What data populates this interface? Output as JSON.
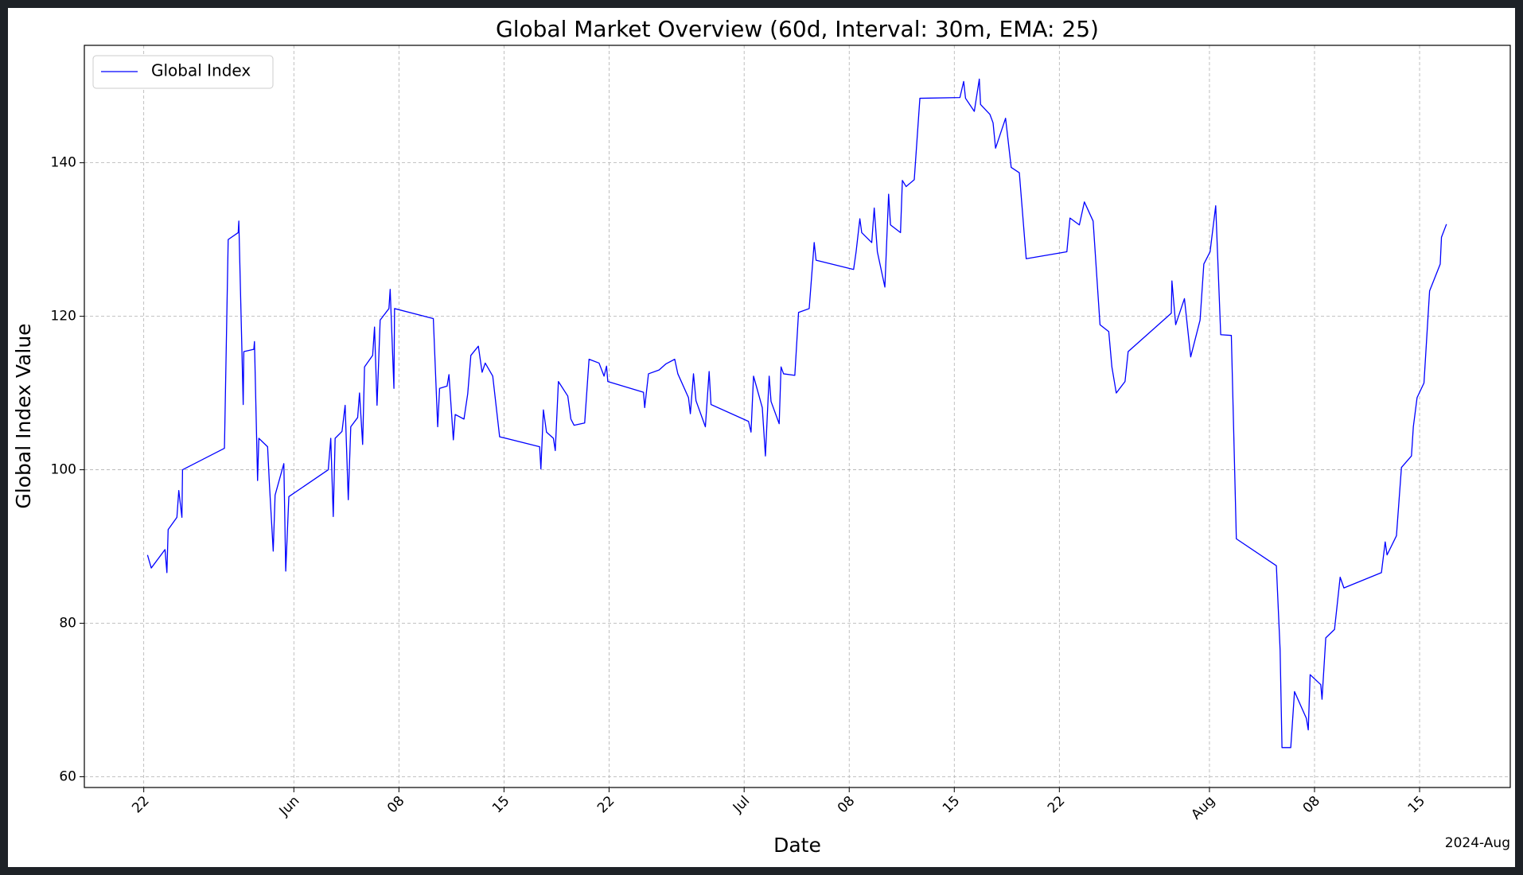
{
  "chart_data": {
    "type": "line",
    "title": "Global Market Overview (60d, Interval: 30m, EMA: 25)",
    "x_label": "Date",
    "y_label": "Global Index Value",
    "x_offset_label": "2024-Aug",
    "grid": true,
    "legend_loc": "upper left",
    "xlim": [
      "2024-05-18 01:00",
      "2024-08-21 01:00"
    ],
    "ylim": [
      58.6,
      155.3
    ],
    "yticks": [
      60,
      80,
      100,
      120,
      140
    ],
    "xticks": [
      {
        "value": "2024-05-22",
        "label": "22"
      },
      {
        "value": "2024-06-01",
        "label": "Jun"
      },
      {
        "value": "2024-06-08",
        "label": "08"
      },
      {
        "value": "2024-06-15",
        "label": "15"
      },
      {
        "value": "2024-06-22",
        "label": "22"
      },
      {
        "value": "2024-07-01",
        "label": "Jul"
      },
      {
        "value": "2024-07-08",
        "label": "08"
      },
      {
        "value": "2024-07-15",
        "label": "15"
      },
      {
        "value": "2024-07-22",
        "label": "22"
      },
      {
        "value": "2024-08-01",
        "label": "Aug"
      },
      {
        "value": "2024-08-08",
        "label": "08"
      },
      {
        "value": "2024-08-15",
        "label": "15"
      }
    ],
    "x": [
      "2024-05-22 06:00",
      "2024-05-22 12:00",
      "2024-05-23 10:00",
      "2024-05-23 13:00",
      "2024-05-23 15:00",
      "2024-05-24 05:00",
      "2024-05-24 08:00",
      "2024-05-24 13:00",
      "2024-05-24 14:00",
      "2024-05-27 09:00",
      "2024-05-27 15:00",
      "2024-05-28 07:00",
      "2024-05-28 08:00",
      "2024-05-28 15:00",
      "2024-05-28 16:00",
      "2024-05-29 08:00",
      "2024-05-29 09:00",
      "2024-05-29 14:00",
      "2024-05-29 16:00",
      "2024-05-30 06:00",
      "2024-05-30 09:00",
      "2024-05-30 15:00",
      "2024-05-30 18:00",
      "2024-05-31 08:00",
      "2024-05-31 11:00",
      "2024-05-31 16:00",
      "2024-06-03 07:00",
      "2024-06-03 11:00",
      "2024-06-03 15:00",
      "2024-06-03 18:00",
      "2024-06-04 05:00",
      "2024-06-04 10:00",
      "2024-06-04 15:00",
      "2024-06-04 19:00",
      "2024-06-05 06:00",
      "2024-06-05 09:00",
      "2024-06-05 14:00",
      "2024-06-05 17:00",
      "2024-06-06 06:00",
      "2024-06-06 09:00",
      "2024-06-06 13:00",
      "2024-06-06 18:00",
      "2024-06-07 08:00",
      "2024-06-07 10:00",
      "2024-06-07 16:00",
      "2024-06-07 17:00",
      "2024-06-10 07:00",
      "2024-06-10 14:00",
      "2024-06-10 17:00",
      "2024-06-11 05:00",
      "2024-06-11 08:00",
      "2024-06-11 15:00",
      "2024-06-11 18:00",
      "2024-06-12 08:00",
      "2024-06-12 14:00",
      "2024-06-12 19:00",
      "2024-06-13 07:00",
      "2024-06-13 13:00",
      "2024-06-13 18:00",
      "2024-06-14 06:00",
      "2024-06-14 17:00",
      "2024-06-17 09:00",
      "2024-06-17 11:00",
      "2024-06-17 15:00",
      "2024-06-17 20:00",
      "2024-06-18 07:00",
      "2024-06-18 10:00",
      "2024-06-18 15:00",
      "2024-06-19 06:00",
      "2024-06-19 11:00",
      "2024-06-19 16:00",
      "2024-06-20 09:00",
      "2024-06-20 16:00",
      "2024-06-21 08:00",
      "2024-06-21 16:00",
      "2024-06-21 20:00",
      "2024-06-21 22:00",
      "2024-06-24 07:00",
      "2024-06-24 09:00",
      "2024-06-24 15:00",
      "2024-06-25 08:00",
      "2024-06-25 19:00",
      "2024-06-26 09:00",
      "2024-06-26 14:00",
      "2024-06-27 07:00",
      "2024-06-27 10:00",
      "2024-06-27 15:00",
      "2024-06-27 19:00",
      "2024-06-28 10:00",
      "2024-06-28 16:00",
      "2024-06-28 19:00",
      "2024-07-01 07:00",
      "2024-07-01 11:00",
      "2024-07-01 15:00",
      "2024-07-02 05:00",
      "2024-07-02 10:00",
      "2024-07-02 16:00",
      "2024-07-02 19:00",
      "2024-07-03 08:00",
      "2024-07-03 11:00",
      "2024-07-03 15:00",
      "2024-07-04 09:00",
      "2024-07-04 15:00",
      "2024-07-05 08:00",
      "2024-07-05 16:00",
      "2024-07-05 19:00",
      "2024-07-08 07:00",
      "2024-07-08 11:00",
      "2024-07-08 17:00",
      "2024-07-08 20:00",
      "2024-07-09 12:00",
      "2024-07-09 16:00",
      "2024-07-09 21:00",
      "2024-07-10 09:00",
      "2024-07-10 15:00",
      "2024-07-10 18:00",
      "2024-07-11 10:00",
      "2024-07-11 13:00",
      "2024-07-11 19:00",
      "2024-07-12 08:00",
      "2024-07-12 17:00",
      "2024-07-15 09:00",
      "2024-07-15 15:00",
      "2024-07-15 18:00",
      "2024-07-16 08:00",
      "2024-07-16 16:00",
      "2024-07-16 18:00",
      "2024-07-17 09:00",
      "2024-07-17 14:00",
      "2024-07-17 18:00",
      "2024-07-18 10:00",
      "2024-07-18 19:00",
      "2024-07-19 08:00",
      "2024-07-19 19:00",
      "2024-07-22 12:00",
      "2024-07-22 17:00",
      "2024-07-23 08:00",
      "2024-07-23 16:00",
      "2024-07-24 06:00",
      "2024-07-24 17:00",
      "2024-07-25 07:00",
      "2024-07-25 12:00",
      "2024-07-25 19:00",
      "2024-07-26 09:00",
      "2024-07-26 14:00",
      "2024-07-29 11:00",
      "2024-07-29 12:00",
      "2024-07-29 18:00",
      "2024-07-30 08:00",
      "2024-07-30 18:00",
      "2024-07-31 09:00",
      "2024-07-31 15:00",
      "2024-08-01 01:00",
      "2024-08-01 10:00",
      "2024-08-01 18:00",
      "2024-08-02 11:00",
      "2024-08-02 19:00",
      "2024-08-05 11:00",
      "2024-08-05 17:00",
      "2024-08-05 20:00",
      "2024-08-06 10:00",
      "2024-08-06 16:00",
      "2024-08-07 11:00",
      "2024-08-07 14:00",
      "2024-08-07 17:00",
      "2024-08-08 10:00",
      "2024-08-08 12:00",
      "2024-08-08 18:00",
      "2024-08-09 08:00",
      "2024-08-09 17:00",
      "2024-08-09 23:00",
      "2024-08-12 11:00",
      "2024-08-12 17:00",
      "2024-08-12 20:00",
      "2024-08-13 11:00",
      "2024-08-13 19:00",
      "2024-08-14 11:00",
      "2024-08-14 14:00",
      "2024-08-14 20:00",
      "2024-08-15 07:00",
      "2024-08-15 16:00",
      "2024-08-16 09:00",
      "2024-08-16 11:00",
      "2024-08-16 19:00"
    ],
    "series": [
      {
        "name": "Global Index",
        "color": "#0000ff",
        "values": [
          88.9,
          87.2,
          89.6,
          86.6,
          92.2,
          93.8,
          97.3,
          93.8,
          100.0,
          102.8,
          130.0,
          130.9,
          132.4,
          108.5,
          115.4,
          115.7,
          116.7,
          98.6,
          104.1,
          103.0,
          98.0,
          89.4,
          96.7,
          100.8,
          86.8,
          96.5,
          100.0,
          104.1,
          93.9,
          104.1,
          105.0,
          108.4,
          96.1,
          105.6,
          106.8,
          110.0,
          103.3,
          113.4,
          114.9,
          118.6,
          108.4,
          119.5,
          121.0,
          123.5,
          110.6,
          121.0,
          119.7,
          105.6,
          110.6,
          110.9,
          112.4,
          103.9,
          107.2,
          106.6,
          109.9,
          114.9,
          116.1,
          112.7,
          113.9,
          112.2,
          104.3,
          103.0,
          100.1,
          107.8,
          104.9,
          104.1,
          102.5,
          111.5,
          109.6,
          106.6,
          105.8,
          106.1,
          114.4,
          113.9,
          112.2,
          113.5,
          111.5,
          110.1,
          108.1,
          112.5,
          113.0,
          113.8,
          114.4,
          112.5,
          109.4,
          107.3,
          112.5,
          109.0,
          105.6,
          112.8,
          108.5,
          106.3,
          104.9,
          112.2,
          108.1,
          101.8,
          112.2,
          108.9,
          106.0,
          113.4,
          112.5,
          112.3,
          120.5,
          121.0,
          129.6,
          127.3,
          126.1,
          128.4,
          132.7,
          130.9,
          129.6,
          134.1,
          128.4,
          123.8,
          135.9,
          131.9,
          130.9,
          137.7,
          136.9,
          137.8,
          148.4,
          148.5,
          150.6,
          148.4,
          146.7,
          150.9,
          147.6,
          146.3,
          145.2,
          141.9,
          145.8,
          139.4,
          138.7,
          127.5,
          128.4,
          132.8,
          131.9,
          134.9,
          132.4,
          118.9,
          118.0,
          113.4,
          110.0,
          111.5,
          115.4,
          120.4,
          124.6,
          118.9,
          122.3,
          114.7,
          119.5,
          126.8,
          128.4,
          134.4,
          117.6,
          117.5,
          91.0,
          87.5,
          76.5,
          63.8,
          63.8,
          71.1,
          67.6,
          66.1,
          73.3,
          72.0,
          70.1,
          78.1,
          79.2,
          86.0,
          84.6,
          86.6,
          90.6,
          88.9,
          91.4,
          100.3,
          101.8,
          105.6,
          109.4,
          111.3,
          123.3,
          126.8,
          130.3,
          132.0
        ]
      }
    ]
  }
}
